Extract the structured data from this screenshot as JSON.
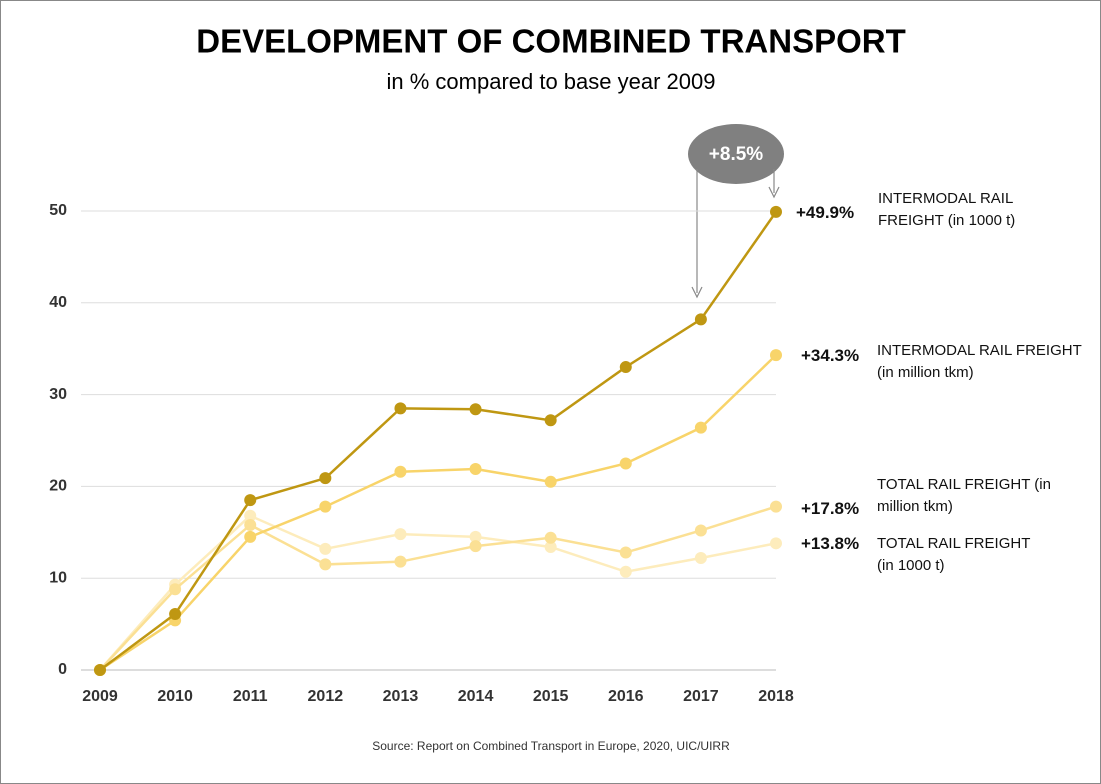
{
  "chart_data": {
    "type": "line",
    "title": "DEVELOPMENT OF COMBINED TRANSPORT",
    "subtitle": "in % compared to base year 2009",
    "source": "Source: Report on Combined Transport in Europe, 2020, UIC/UIRR",
    "annotation": "+8.5%",
    "categories": [
      "2009",
      "2010",
      "2011",
      "2012",
      "2013",
      "2014",
      "2015",
      "2016",
      "2017",
      "2018"
    ],
    "ylim": [
      0,
      50
    ],
    "yticks": [
      0,
      10,
      20,
      30,
      40,
      50
    ],
    "grid": true,
    "series": [
      {
        "name": "INTERMODAL RAIL FREIGHT (in 1000 t)",
        "color": "#bf9712",
        "end_label": "+49.9%",
        "values": [
          0,
          6.1,
          18.5,
          20.9,
          28.5,
          28.4,
          27.2,
          33.0,
          38.2,
          49.9
        ]
      },
      {
        "name": "INTERMODAL RAIL FREIGHT (in million tkm)",
        "color": "#f8d46a",
        "end_label": "+34.3%",
        "values": [
          0,
          5.4,
          14.5,
          17.8,
          21.6,
          21.9,
          20.5,
          22.5,
          26.4,
          34.3
        ]
      },
      {
        "name": "TOTAL RAIL FREIGHT (in million tkm)",
        "color": "#fbe094",
        "end_label": "+17.8%",
        "values": [
          0,
          8.8,
          15.8,
          11.5,
          11.8,
          13.5,
          14.4,
          12.8,
          15.2,
          17.8
        ]
      },
      {
        "name": "TOTAL RAIL FREIGHT (in 1000 t)",
        "color": "#fdecbc",
        "end_label": "+13.8%",
        "values": [
          0,
          9.3,
          16.8,
          13.2,
          14.8,
          14.5,
          13.4,
          10.7,
          12.2,
          13.8
        ]
      }
    ]
  }
}
